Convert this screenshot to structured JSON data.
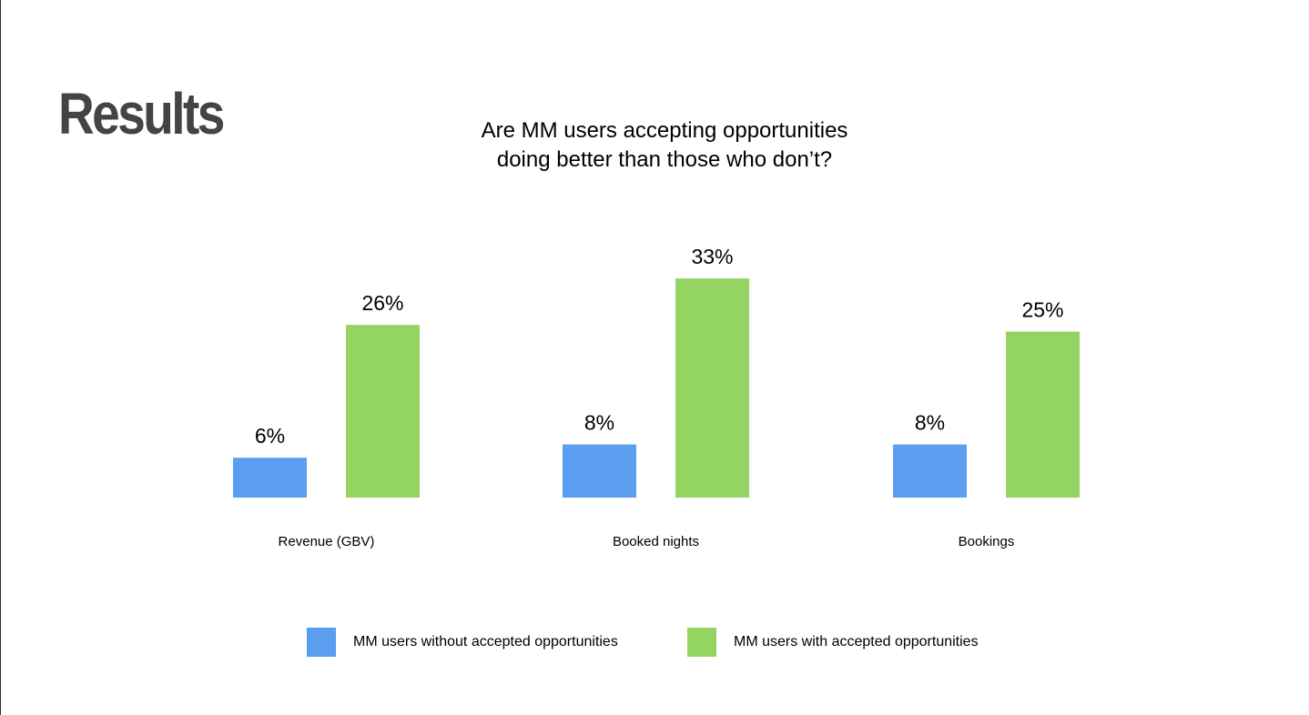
{
  "slide": {
    "title": "Results"
  },
  "colors": {
    "without": "#5b9ef0",
    "with": "#94d463"
  },
  "chart_data": {
    "type": "bar",
    "title_lines": [
      "Are MM users accepting opportunities",
      "doing better than those who don’t?"
    ],
    "categories": [
      "Revenue (GBV)",
      "Booked nights",
      "Bookings"
    ],
    "series": [
      {
        "name": "MM users without accepted opportunities",
        "values": [
          6,
          8,
          8
        ],
        "labels": [
          "6%",
          "8%",
          "8%"
        ],
        "color": "#5b9ef0"
      },
      {
        "name": "MM users with accepted opportunities",
        "values": [
          26,
          33,
          25
        ],
        "labels": [
          "26%",
          "33%",
          "25%"
        ],
        "color": "#94d463"
      }
    ],
    "unit": "%",
    "ylim": [
      0,
      33
    ],
    "grid": false,
    "axes_visible": false,
    "legend_position": "bottom"
  }
}
